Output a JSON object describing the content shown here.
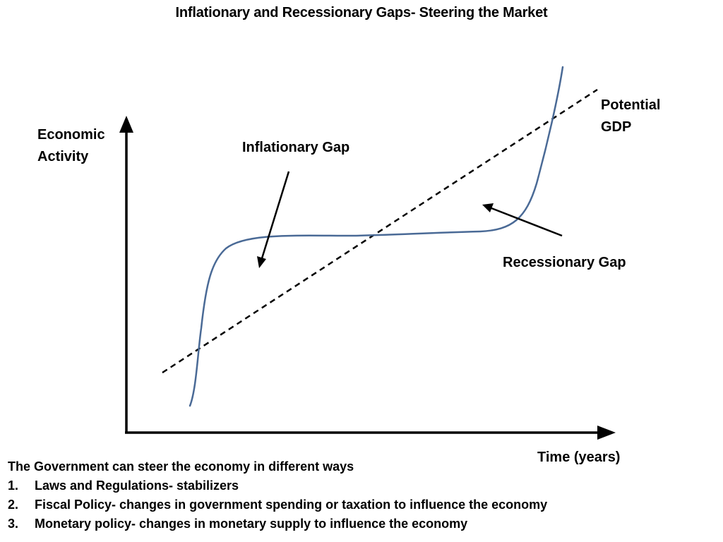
{
  "title": "Inflationary and Recessionary Gaps- Steering the Market",
  "axes": {
    "y_label_line1": "Economic",
    "y_label_line2": "Activity",
    "x_label": "Time (years)"
  },
  "curves": {
    "potential_label_line1": "Potential",
    "potential_label_line2": "GDP",
    "potential_style": "dashed",
    "potential_color": "#000000",
    "actual_color": "#4a6a96"
  },
  "annotations": {
    "inflationary_gap": "Inflationary Gap",
    "recessionary_gap": "Recessionary Gap"
  },
  "notes": {
    "intro": "The Government can steer the economy in different ways",
    "items": [
      {
        "num": "1.",
        "text": "Laws and Regulations- stabilizers"
      },
      {
        "num": "2.",
        "text": "Fiscal Policy- changes in government spending or taxation to influence the economy"
      },
      {
        "num": "3.",
        "text": "Monetary policy- changes in monetary supply to influence the economy"
      }
    ]
  }
}
